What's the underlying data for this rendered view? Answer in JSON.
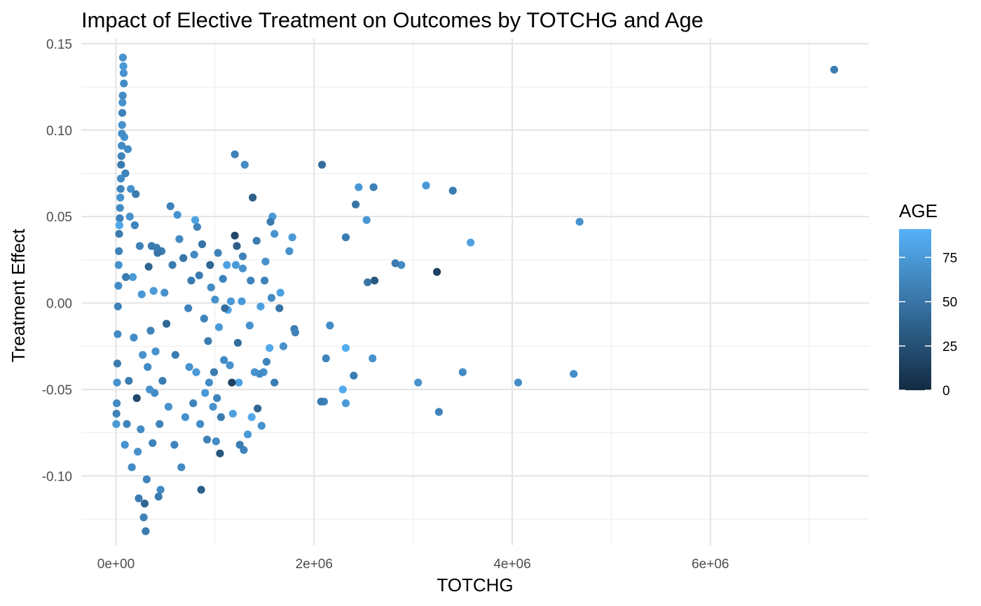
{
  "chart_data": {
    "type": "scatter",
    "title": "Impact of Elective Treatment on Outcomes by TOTCHG and Age",
    "xlabel": "TOTCHG",
    "ylabel": "Treatment Effect",
    "xlim": [
      -350000,
      7600000
    ],
    "ylim": [
      -0.14,
      0.153
    ],
    "x_ticks": [
      0,
      2000000,
      4000000,
      6000000
    ],
    "x_tick_labels": [
      "0e+00",
      "2e+06",
      "4e+06",
      "6e+06"
    ],
    "x_minor_ticks": [
      1000000,
      3000000,
      5000000,
      7000000
    ],
    "y_ticks": [
      0.15,
      0.1,
      0.05,
      0.0,
      -0.05,
      -0.1
    ],
    "y_tick_labels": [
      "0.15",
      "0.10",
      "0.05",
      "0.00",
      "-0.05",
      "-0.10"
    ],
    "y_minor_ticks": [
      0.125,
      0.075,
      0.025,
      -0.025,
      -0.075,
      -0.125
    ],
    "grid": true,
    "legend": {
      "title": "AGE",
      "position": "right",
      "type": "colorbar",
      "range": [
        0,
        91
      ],
      "breaks": [
        0,
        25,
        50,
        75
      ],
      "labels": [
        "0",
        "25",
        "50",
        "75"
      ],
      "color_low": "#132B43",
      "color_high": "#56B1F7"
    },
    "points": [
      {
        "x": 7250000,
        "y": 0.135,
        "age": 55
      },
      {
        "x": 4680000,
        "y": 0.047,
        "age": 70
      },
      {
        "x": 4620000,
        "y": -0.041,
        "age": 68
      },
      {
        "x": 4060000,
        "y": -0.046,
        "age": 66
      },
      {
        "x": 3580000,
        "y": 0.035,
        "age": 80
      },
      {
        "x": 3500000,
        "y": -0.04,
        "age": 65
      },
      {
        "x": 3400000,
        "y": 0.065,
        "age": 55
      },
      {
        "x": 3260000,
        "y": -0.063,
        "age": 60
      },
      {
        "x": 3240000,
        "y": 0.018,
        "age": 15
      },
      {
        "x": 3130000,
        "y": 0.068,
        "age": 75
      },
      {
        "x": 3050000,
        "y": -0.046,
        "age": 70
      },
      {
        "x": 2880000,
        "y": 0.022,
        "age": 65
      },
      {
        "x": 2820000,
        "y": 0.023,
        "age": 55
      },
      {
        "x": 2610000,
        "y": 0.013,
        "age": 30
      },
      {
        "x": 2600000,
        "y": 0.067,
        "age": 58
      },
      {
        "x": 2590000,
        "y": -0.032,
        "age": 70
      },
      {
        "x": 2540000,
        "y": 0.012,
        "age": 50
      },
      {
        "x": 2530000,
        "y": 0.048,
        "age": 72
      },
      {
        "x": 2450000,
        "y": 0.067,
        "age": 75
      },
      {
        "x": 2420000,
        "y": 0.057,
        "age": 50
      },
      {
        "x": 2400000,
        "y": -0.042,
        "age": 55
      },
      {
        "x": 2320000,
        "y": 0.038,
        "age": 55
      },
      {
        "x": 2320000,
        "y": -0.026,
        "age": 88
      },
      {
        "x": 2320000,
        "y": -0.058,
        "age": 75
      },
      {
        "x": 2290000,
        "y": -0.05,
        "age": 85
      },
      {
        "x": 2160000,
        "y": -0.013,
        "age": 65
      },
      {
        "x": 2120000,
        "y": -0.032,
        "age": 60
      },
      {
        "x": 2100000,
        "y": -0.057,
        "age": 60
      },
      {
        "x": 2080000,
        "y": 0.08,
        "age": 45
      },
      {
        "x": 2070000,
        "y": -0.057,
        "age": 55
      },
      {
        "x": 1800000,
        "y": -0.015,
        "age": 55
      },
      {
        "x": 1810000,
        "y": -0.017,
        "age": 60
      },
      {
        "x": 1780000,
        "y": 0.038,
        "age": 75
      },
      {
        "x": 1750000,
        "y": 0.03,
        "age": 70
      },
      {
        "x": 1690000,
        "y": -0.025,
        "age": 70
      },
      {
        "x": 1660000,
        "y": 0.006,
        "age": 80
      },
      {
        "x": 1650000,
        "y": -0.003,
        "age": 50
      },
      {
        "x": 1600000,
        "y": 0.04,
        "age": 70
      },
      {
        "x": 1600000,
        "y": -0.046,
        "age": 55
      },
      {
        "x": 1580000,
        "y": 0.05,
        "age": 75
      },
      {
        "x": 1560000,
        "y": 0.047,
        "age": 55
      },
      {
        "x": 1570000,
        "y": 0.003,
        "age": 65
      },
      {
        "x": 1550000,
        "y": -0.026,
        "age": 85
      },
      {
        "x": 1520000,
        "y": -0.034,
        "age": 60
      },
      {
        "x": 1510000,
        "y": 0.024,
        "age": 70
      },
      {
        "x": 1500000,
        "y": 0.013,
        "age": 60
      },
      {
        "x": 1490000,
        "y": -0.04,
        "age": 70
      },
      {
        "x": 1470000,
        "y": -0.071,
        "age": 70
      },
      {
        "x": 1460000,
        "y": -0.002,
        "age": 80
      },
      {
        "x": 1450000,
        "y": -0.041,
        "age": 65
      },
      {
        "x": 1430000,
        "y": -0.061,
        "age": 40
      },
      {
        "x": 1420000,
        "y": 0.036,
        "age": 55
      },
      {
        "x": 1400000,
        "y": -0.04,
        "age": 70
      },
      {
        "x": 1380000,
        "y": 0.061,
        "age": 35
      },
      {
        "x": 1370000,
        "y": -0.066,
        "age": 85
      },
      {
        "x": 1360000,
        "y": 0.013,
        "age": 60
      },
      {
        "x": 1350000,
        "y": -0.013,
        "age": 70
      },
      {
        "x": 1330000,
        "y": -0.076,
        "age": 75
      },
      {
        "x": 1300000,
        "y": 0.08,
        "age": 65
      },
      {
        "x": 1290000,
        "y": -0.085,
        "age": 60
      },
      {
        "x": 1280000,
        "y": 0.027,
        "age": 60
      },
      {
        "x": 1280000,
        "y": 0.02,
        "age": 70
      },
      {
        "x": 1270000,
        "y": 0.001,
        "age": 75
      },
      {
        "x": 1250000,
        "y": -0.082,
        "age": 55
      },
      {
        "x": 1240000,
        "y": -0.046,
        "age": 80
      },
      {
        "x": 1230000,
        "y": -0.023,
        "age": 45
      },
      {
        "x": 1220000,
        "y": 0.033,
        "age": 35
      },
      {
        "x": 1210000,
        "y": 0.022,
        "age": 75
      },
      {
        "x": 1200000,
        "y": 0.086,
        "age": 60
      },
      {
        "x": 1200000,
        "y": 0.039,
        "age": 20
      },
      {
        "x": 1180000,
        "y": -0.064,
        "age": 80
      },
      {
        "x": 1170000,
        "y": -0.046,
        "age": 15
      },
      {
        "x": 1160000,
        "y": 0.001,
        "age": 75
      },
      {
        "x": 1150000,
        "y": -0.036,
        "age": 70
      },
      {
        "x": 1130000,
        "y": -0.004,
        "age": 85
      },
      {
        "x": 1120000,
        "y": 0.022,
        "age": 80
      },
      {
        "x": 1100000,
        "y": -0.003,
        "age": 45
      },
      {
        "x": 1090000,
        "y": -0.033,
        "age": 65
      },
      {
        "x": 1080000,
        "y": 0.014,
        "age": 60
      },
      {
        "x": 1060000,
        "y": -0.066,
        "age": 55
      },
      {
        "x": 1050000,
        "y": -0.087,
        "age": 30
      },
      {
        "x": 1040000,
        "y": -0.014,
        "age": 75
      },
      {
        "x": 1030000,
        "y": 0.029,
        "age": 60
      },
      {
        "x": 1020000,
        "y": -0.055,
        "age": 60
      },
      {
        "x": 1010000,
        "y": -0.08,
        "age": 65
      },
      {
        "x": 1000000,
        "y": 0.002,
        "age": 70
      },
      {
        "x": 990000,
        "y": -0.04,
        "age": 55
      },
      {
        "x": 980000,
        "y": -0.06,
        "age": 70
      },
      {
        "x": 960000,
        "y": 0.009,
        "age": 65
      },
      {
        "x": 950000,
        "y": 0.022,
        "age": 40
      },
      {
        "x": 940000,
        "y": -0.046,
        "age": 65
      },
      {
        "x": 930000,
        "y": -0.022,
        "age": 55
      },
      {
        "x": 920000,
        "y": -0.079,
        "age": 60
      },
      {
        "x": 900000,
        "y": -0.052,
        "age": 75
      },
      {
        "x": 890000,
        "y": -0.009,
        "age": 60
      },
      {
        "x": 870000,
        "y": 0.034,
        "age": 50
      },
      {
        "x": 860000,
        "y": -0.108,
        "age": 35
      },
      {
        "x": 850000,
        "y": -0.07,
        "age": 65
      },
      {
        "x": 840000,
        "y": 0.016,
        "age": 55
      },
      {
        "x": 820000,
        "y": 0.044,
        "age": 60
      },
      {
        "x": 810000,
        "y": -0.04,
        "age": 75
      },
      {
        "x": 800000,
        "y": 0.048,
        "age": 80
      },
      {
        "x": 790000,
        "y": 0.028,
        "age": 65
      },
      {
        "x": 780000,
        "y": -0.058,
        "age": 60
      },
      {
        "x": 760000,
        "y": 0.013,
        "age": 55
      },
      {
        "x": 740000,
        "y": -0.037,
        "age": 70
      },
      {
        "x": 730000,
        "y": -0.003,
        "age": 60
      },
      {
        "x": 700000,
        "y": -0.066,
        "age": 70
      },
      {
        "x": 680000,
        "y": 0.026,
        "age": 50
      },
      {
        "x": 660000,
        "y": -0.095,
        "age": 65
      },
      {
        "x": 640000,
        "y": 0.037,
        "age": 65
      },
      {
        "x": 620000,
        "y": 0.051,
        "age": 70
      },
      {
        "x": 600000,
        "y": -0.03,
        "age": 55
      },
      {
        "x": 590000,
        "y": -0.082,
        "age": 60
      },
      {
        "x": 570000,
        "y": 0.022,
        "age": 55
      },
      {
        "x": 550000,
        "y": 0.056,
        "age": 60
      },
      {
        "x": 530000,
        "y": -0.06,
        "age": 70
      },
      {
        "x": 510000,
        "y": -0.012,
        "age": 40
      },
      {
        "x": 490000,
        "y": 0.006,
        "age": 70
      },
      {
        "x": 470000,
        "y": -0.045,
        "age": 55
      },
      {
        "x": 460000,
        "y": 0.03,
        "age": 55
      },
      {
        "x": 450000,
        "y": -0.108,
        "age": 65
      },
      {
        "x": 440000,
        "y": -0.07,
        "age": 60
      },
      {
        "x": 430000,
        "y": -0.112,
        "age": 55
      },
      {
        "x": 420000,
        "y": 0.029,
        "age": 50
      },
      {
        "x": 410000,
        "y": 0.032,
        "age": 55
      },
      {
        "x": 400000,
        "y": -0.028,
        "age": 70
      },
      {
        "x": 390000,
        "y": -0.052,
        "age": 65
      },
      {
        "x": 380000,
        "y": 0.007,
        "age": 75
      },
      {
        "x": 370000,
        "y": -0.081,
        "age": 60
      },
      {
        "x": 360000,
        "y": 0.033,
        "age": 55
      },
      {
        "x": 350000,
        "y": -0.016,
        "age": 60
      },
      {
        "x": 340000,
        "y": -0.05,
        "age": 70
      },
      {
        "x": 330000,
        "y": 0.021,
        "age": 40
      },
      {
        "x": 320000,
        "y": -0.037,
        "age": 65
      },
      {
        "x": 310000,
        "y": -0.102,
        "age": 60
      },
      {
        "x": 300000,
        "y": -0.132,
        "age": 55
      },
      {
        "x": 290000,
        "y": -0.116,
        "age": 40
      },
      {
        "x": 280000,
        "y": -0.124,
        "age": 60
      },
      {
        "x": 270000,
        "y": -0.03,
        "age": 70
      },
      {
        "x": 260000,
        "y": 0.005,
        "age": 75
      },
      {
        "x": 250000,
        "y": -0.073,
        "age": 65
      },
      {
        "x": 240000,
        "y": 0.033,
        "age": 60
      },
      {
        "x": 230000,
        "y": -0.113,
        "age": 55
      },
      {
        "x": 220000,
        "y": -0.086,
        "age": 70
      },
      {
        "x": 210000,
        "y": -0.055,
        "age": 20
      },
      {
        "x": 200000,
        "y": 0.063,
        "age": 55
      },
      {
        "x": 190000,
        "y": 0.045,
        "age": 60
      },
      {
        "x": 180000,
        "y": -0.02,
        "age": 65
      },
      {
        "x": 170000,
        "y": 0.015,
        "age": 75
      },
      {
        "x": 160000,
        "y": -0.095,
        "age": 65
      },
      {
        "x": 150000,
        "y": 0.066,
        "age": 70
      },
      {
        "x": 140000,
        "y": 0.05,
        "age": 70
      },
      {
        "x": 130000,
        "y": -0.045,
        "age": 55
      },
      {
        "x": 120000,
        "y": 0.089,
        "age": 65
      },
      {
        "x": 110000,
        "y": -0.07,
        "age": 60
      },
      {
        "x": 100000,
        "y": 0.015,
        "age": 55
      },
      {
        "x": 95000,
        "y": 0.075,
        "age": 60
      },
      {
        "x": 90000,
        "y": -0.082,
        "age": 70
      },
      {
        "x": 85000,
        "y": 0.096,
        "age": 70
      },
      {
        "x": 80000,
        "y": 0.127,
        "age": 65
      },
      {
        "x": 78000,
        "y": 0.133,
        "age": 70
      },
      {
        "x": 75000,
        "y": 0.137,
        "age": 75
      },
      {
        "x": 70000,
        "y": 0.142,
        "age": 70
      },
      {
        "x": 68000,
        "y": 0.12,
        "age": 65
      },
      {
        "x": 66000,
        "y": 0.116,
        "age": 70
      },
      {
        "x": 64000,
        "y": 0.11,
        "age": 60
      },
      {
        "x": 62000,
        "y": 0.103,
        "age": 70
      },
      {
        "x": 60000,
        "y": 0.098,
        "age": 65
      },
      {
        "x": 58000,
        "y": 0.091,
        "age": 65
      },
      {
        "x": 55000,
        "y": 0.085,
        "age": 60
      },
      {
        "x": 52000,
        "y": 0.08,
        "age": 55
      },
      {
        "x": 50000,
        "y": 0.072,
        "age": 65
      },
      {
        "x": 47000,
        "y": 0.066,
        "age": 60
      },
      {
        "x": 44000,
        "y": 0.061,
        "age": 70
      },
      {
        "x": 41000,
        "y": 0.055,
        "age": 65
      },
      {
        "x": 38000,
        "y": 0.049,
        "age": 60
      },
      {
        "x": 35000,
        "y": 0.045,
        "age": 85
      },
      {
        "x": 32000,
        "y": 0.04,
        "age": 55
      },
      {
        "x": 30000,
        "y": 0.03,
        "age": 60
      },
      {
        "x": 27000,
        "y": 0.022,
        "age": 70
      },
      {
        "x": 24000,
        "y": 0.01,
        "age": 65
      },
      {
        "x": 20000,
        "y": -0.002,
        "age": 60
      },
      {
        "x": 17000,
        "y": -0.018,
        "age": 65
      },
      {
        "x": 14000,
        "y": -0.035,
        "age": 55
      },
      {
        "x": 11000,
        "y": -0.046,
        "age": 70
      },
      {
        "x": 8000,
        "y": -0.058,
        "age": 65
      },
      {
        "x": 5000,
        "y": -0.064,
        "age": 60
      },
      {
        "x": 3000,
        "y": -0.07,
        "age": 75
      }
    ]
  }
}
